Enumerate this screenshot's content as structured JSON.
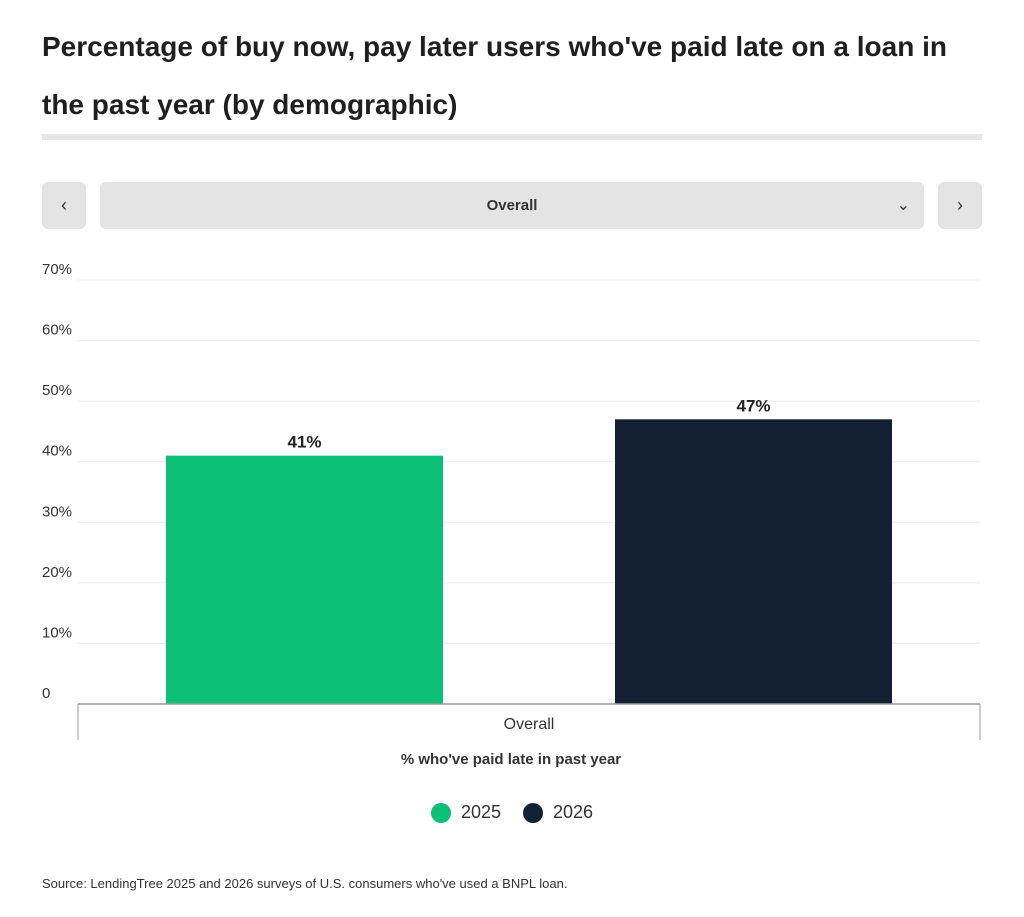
{
  "title": "Percentage of buy now, pay later users who've paid late on a loan in the past year (by demographic)",
  "selector": {
    "prev_icon": "chevron-left-icon",
    "next_icon": "chevron-right-icon",
    "dropdown_icon": "chevron-down-icon",
    "selected": "Overall"
  },
  "chart_data": {
    "type": "bar",
    "categories": [
      "Overall"
    ],
    "xlabel": "% who've paid late in past year",
    "ylabel": "",
    "ylim": [
      0,
      70
    ],
    "yticks": [
      0,
      10,
      20,
      30,
      40,
      50,
      60,
      70
    ],
    "ytick_labels": [
      "0",
      "10%",
      "20%",
      "30%",
      "40%",
      "50%",
      "60%",
      "70%"
    ],
    "grid": true,
    "legend": "bottom-center",
    "series": [
      {
        "name": "2025",
        "values": [
          41
        ],
        "labels": [
          "41%"
        ],
        "color": "#0bbf74"
      },
      {
        "name": "2026",
        "values": [
          47
        ],
        "labels": [
          "47%"
        ],
        "color": "#131f33"
      }
    ]
  },
  "source": "Source: LendingTree 2025 and 2026 surveys of U.S. consumers who've used a BNPL loan."
}
